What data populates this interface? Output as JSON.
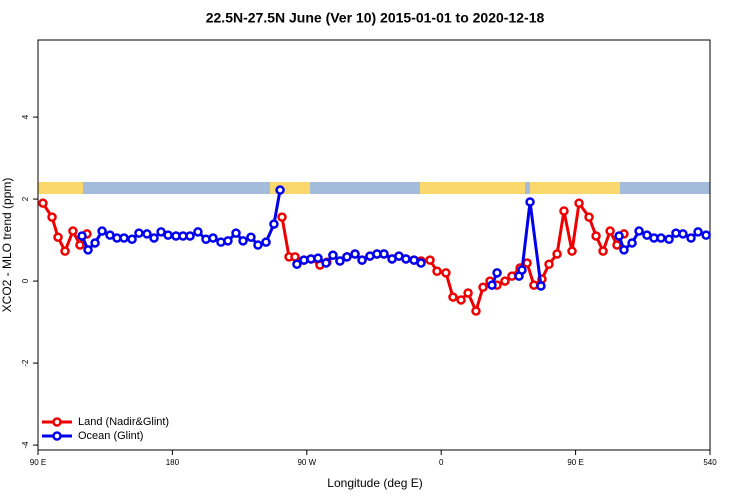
{
  "chart_data": {
    "type": "line",
    "title": "22.5N-27.5N June (Ver 10)   2015-01-01 to 2020-12-18",
    "xlabel": "Longitude (deg E)",
    "ylabel": "XCO2 - MLO trend (ppm)",
    "xlim": [
      90,
      540
    ],
    "xticks": [
      {
        "value": 90,
        "label": "90 E"
      },
      180,
      {
        "value": 270,
        "label": "90 W"
      },
      {
        "value": 360,
        "label": "0"
      },
      {
        "value": 450,
        "label": "90 E"
      },
      540
    ],
    "ylim": [
      -4.12,
      5.88
    ],
    "yticks": [
      -4,
      -2,
      0,
      2,
      4
    ],
    "legend": "bottom-left",
    "series": [
      {
        "name": "Land (Nadir&Glint)",
        "color": "#ee0000",
        "x": [
          93.3,
          99.4,
          103.4,
          108.1,
          113.4,
          118.1,
          122.8,
          null,
          253.4,
          258.1,
          262.1,
          268.1,
          272.8,
          278.8,
          283.5,
          287.5,
          292.2,
          296.9,
          302.3,
          307.0,
          312.3,
          317.0,
          321.7,
          327.1,
          331.7,
          336.4,
          341.8,
          346.5,
          352.5,
          357.2,
          363.2,
          367.9,
          373.3,
          378.0,
          383.3,
          388.0,
          392.7,
          397.4,
          402.7,
          407.4,
          412.8,
          417.5,
          422.1,
          427.5,
          432.2,
          437.6,
          442.2,
          447.6,
          452.3,
          459.0,
          463.7,
          468.4,
          473.1,
          477.7,
          482.4
        ],
        "values": [
          1.9,
          1.56,
          1.07,
          0.73,
          1.22,
          0.88,
          1.15,
          null,
          1.56,
          0.59,
          0.59,
          0.51,
          0.54,
          0.39,
          0.46,
          0.63,
          0.49,
          0.59,
          0.66,
          0.51,
          0.61,
          0.66,
          0.66,
          0.54,
          0.61,
          0.54,
          0.51,
          0.49,
          0.51,
          0.24,
          0.2,
          -0.39,
          -0.46,
          -0.29,
          -0.73,
          -0.15,
          0,
          -0.1,
          0,
          0.12,
          0.32,
          0.44,
          -0.1,
          0.05,
          0.41,
          0.66,
          1.71,
          0.73,
          1.9,
          1.56,
          1.1,
          0.73,
          1.22,
          0.88,
          1.15
        ]
      },
      {
        "name": "Ocean (Glint)",
        "color": "#0000ee",
        "x": [
          119.5,
          123.5,
          128.2,
          132.9,
          138.2,
          142.9,
          147.6,
          153.0,
          157.6,
          163.0,
          167.7,
          172.4,
          177.1,
          182.4,
          187.1,
          191.8,
          197.1,
          202.5,
          207.2,
          212.5,
          217.2,
          222.6,
          227.3,
          232.6,
          237.3,
          242.7,
          248.0,
          252.1,
          null,
          263.4,
          268.1,
          272.8,
          277.5,
          282.9,
          287.5,
          292.2,
          296.9,
          302.3,
          307.0,
          312.3,
          317.0,
          321.7,
          327.1,
          331.7,
          336.4,
          341.8,
          346.5,
          null,
          394.0,
          397.4,
          null,
          412.1,
          414.1,
          419.5,
          426.8,
          null,
          479.1,
          482.4,
          487.8,
          492.5,
          497.8,
          502.5,
          507.2,
          512.6,
          517.2,
          521.9,
          527.3,
          532.0,
          537.4
        ],
        "values": [
          1.1,
          0.76,
          0.93,
          1.22,
          1.12,
          1.05,
          1.05,
          1.02,
          1.17,
          1.15,
          1.05,
          1.2,
          1.12,
          1.1,
          1.1,
          1.1,
          1.2,
          1.02,
          1.05,
          0.95,
          0.98,
          1.17,
          0.98,
          1.07,
          0.88,
          0.95,
          1.39,
          2.22,
          null,
          0.41,
          0.51,
          0.54,
          0.56,
          0.44,
          0.63,
          0.49,
          0.59,
          0.66,
          0.51,
          0.61,
          0.66,
          0.66,
          0.54,
          0.61,
          0.54,
          0.51,
          0.44,
          null,
          -0.1,
          0.2,
          null,
          0.12,
          0.27,
          1.93,
          -0.12,
          null,
          1.1,
          0.76,
          0.93,
          1.22,
          1.12,
          1.05,
          1.05,
          1.02,
          1.17,
          1.15,
          1.05,
          1.2,
          1.12
        ]
      }
    ]
  }
}
